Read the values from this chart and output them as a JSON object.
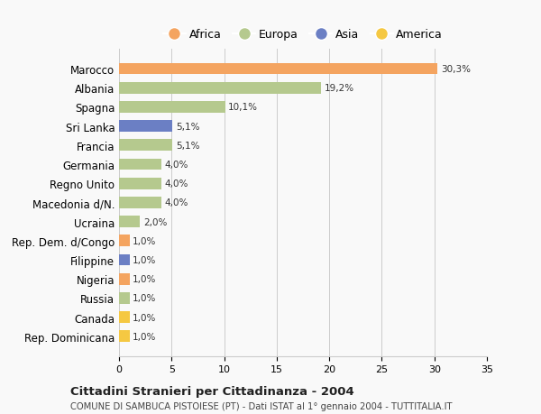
{
  "categories": [
    "Marocco",
    "Albania",
    "Spagna",
    "Sri Lanka",
    "Francia",
    "Germania",
    "Regno Unito",
    "Macedonia d/N.",
    "Ucraina",
    "Rep. Dem. d/Congo",
    "Filippine",
    "Nigeria",
    "Russia",
    "Canada",
    "Rep. Dominicana"
  ],
  "values": [
    30.3,
    19.2,
    10.1,
    5.1,
    5.1,
    4.0,
    4.0,
    4.0,
    2.0,
    1.0,
    1.0,
    1.0,
    1.0,
    1.0,
    1.0
  ],
  "labels": [
    "30,3%",
    "19,2%",
    "10,1%",
    "5,1%",
    "5,1%",
    "4,0%",
    "4,0%",
    "4,0%",
    "2,0%",
    "1,0%",
    "1,0%",
    "1,0%",
    "1,0%",
    "1,0%",
    "1,0%"
  ],
  "continents": [
    "Africa",
    "Europa",
    "Europa",
    "Asia",
    "Europa",
    "Europa",
    "Europa",
    "Europa",
    "Europa",
    "Africa",
    "Asia",
    "Africa",
    "Europa",
    "America",
    "America"
  ],
  "colors": {
    "Africa": "#F4A460",
    "Europa": "#B5C98E",
    "Asia": "#6B7FC4",
    "America": "#F5C842"
  },
  "legend_items": [
    "Africa",
    "Europa",
    "Asia",
    "America"
  ],
  "legend_colors": [
    "#F4A460",
    "#B5C98E",
    "#6B7FC4",
    "#F5C842"
  ],
  "title": "Cittadini Stranieri per Cittadinanza - 2004",
  "subtitle": "COMUNE DI SAMBUCA PISTOIESE (PT) - Dati ISTAT al 1° gennaio 2004 - TUTTITALIA.IT",
  "xlim": [
    0,
    35
  ],
  "xticks": [
    0,
    5,
    10,
    15,
    20,
    25,
    30,
    35
  ],
  "background_color": "#f9f9f9",
  "grid_color": "#cccccc"
}
